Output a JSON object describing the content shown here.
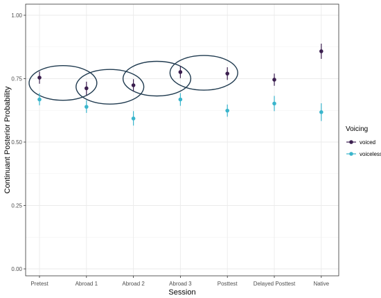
{
  "chart_data": {
    "type": "scatter",
    "xlabel": "Session",
    "ylabel": "Continuant Posterior Probability",
    "categories": [
      "Pretest",
      "Abroad 1",
      "Abroad 2",
      "Abroad 3",
      "Posttest",
      "Delayed Posttest",
      "Native"
    ],
    "ylim": [
      0,
      1
    ],
    "y_ticks": [
      "0.00",
      "0.25",
      "0.50",
      "0.75",
      "1.00"
    ],
    "grid": true,
    "legend": {
      "title": "Voicing",
      "position": "right"
    },
    "colors": {
      "voiced": "#3b1f4f",
      "voiceless": "#3ab5cc",
      "ellipse": "#1f3a4f"
    },
    "series": [
      {
        "name": "voiced",
        "values": [
          0.754,
          0.712,
          0.724,
          0.776,
          0.77,
          0.746,
          0.858
        ],
        "lower": [
          0.73,
          0.685,
          0.7,
          0.752,
          0.745,
          0.722,
          0.828
        ],
        "upper": [
          0.778,
          0.738,
          0.748,
          0.8,
          0.795,
          0.77,
          0.888
        ]
      },
      {
        "name": "voiceless",
        "values": [
          0.668,
          0.639,
          0.593,
          0.668,
          0.624,
          0.652,
          0.618
        ],
        "lower": [
          0.645,
          0.615,
          0.565,
          0.643,
          0.6,
          0.622,
          0.583
        ],
        "upper": [
          0.693,
          0.665,
          0.622,
          0.693,
          0.648,
          0.682,
          0.653
        ]
      }
    ],
    "annotations": {
      "ellipses_around_categories": [
        [
          "Pretest",
          "Abroad 1"
        ],
        [
          "Abroad 1",
          "Abroad 2"
        ],
        [
          "Abroad 2",
          "Abroad 3"
        ],
        [
          "Abroad 3",
          "Posttest"
        ]
      ]
    }
  }
}
